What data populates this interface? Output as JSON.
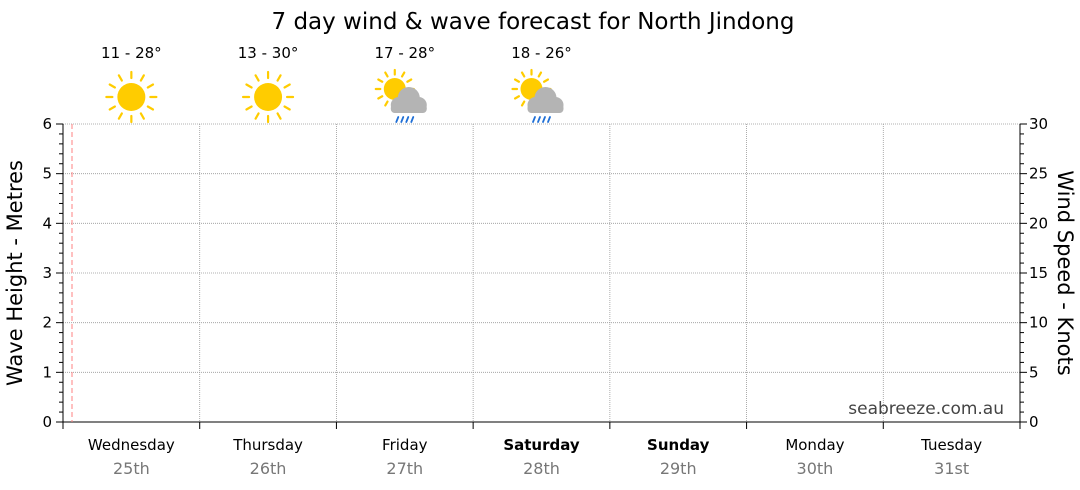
{
  "chart_data": {
    "type": "line",
    "title": "7 day wind & wave forecast for North Jindong",
    "left_axis": {
      "label": "Wave Height - Metres",
      "ylim": [
        0,
        6
      ],
      "ticks": [
        0,
        1,
        2,
        3,
        4,
        5,
        6
      ]
    },
    "right_axis": {
      "label": "Wind Speed - Knots",
      "ylim": [
        0,
        30
      ],
      "ticks": [
        0,
        5,
        10,
        15,
        20,
        25,
        30
      ]
    },
    "days": [
      {
        "name": "Wednesday",
        "date": "25th",
        "bold": false
      },
      {
        "name": "Thursday",
        "date": "26th",
        "bold": false
      },
      {
        "name": "Friday",
        "date": "27th",
        "bold": false
      },
      {
        "name": "Saturday",
        "date": "28th",
        "bold": true
      },
      {
        "name": "Sunday",
        "date": "29th",
        "bold": true
      },
      {
        "name": "Monday",
        "date": "30th",
        "bold": false
      },
      {
        "name": "Tuesday",
        "date": "31st",
        "bold": false
      }
    ],
    "forecasts": [
      {
        "temp": "11 - 28°",
        "icon": "sunny-icon"
      },
      {
        "temp": "13 - 30°",
        "icon": "sunny-icon"
      },
      {
        "temp": "17 - 28°",
        "icon": "partly-cloudy-showers-icon"
      },
      {
        "temp": "18 - 26°",
        "icon": "partly-cloudy-showers-icon"
      }
    ],
    "grid": true,
    "series": [],
    "watermark": "seabreeze.com.au",
    "colors": {
      "grid": "#999999",
      "now_marker": "#ff8080",
      "sun": "#ffcc00",
      "cloud": "#b4b4b4",
      "rain": "#1f6fd6"
    }
  }
}
